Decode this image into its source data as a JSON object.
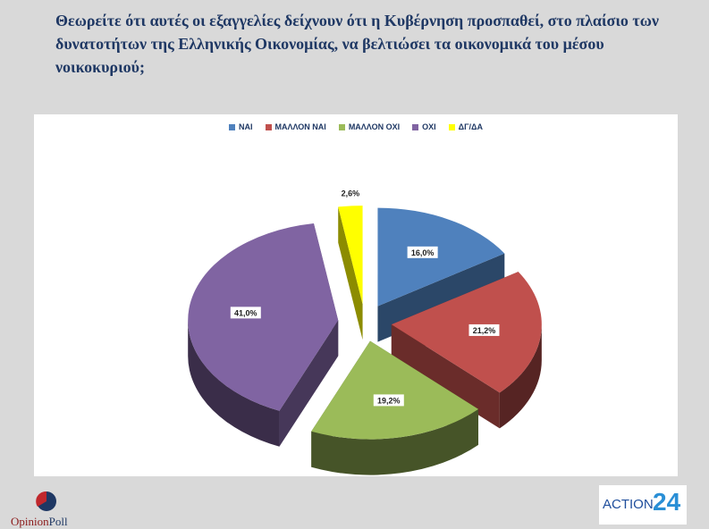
{
  "title": "Θεωρείτε ότι αυτές οι εξαγγελίες δείχνουν ότι η Κυβέρνηση προσπαθεί, στο πλαίσιο των δυνατοτήτων της Ελληνικής Οικονομίας, να βελτιώσει τα οικονομικά του μέσου νοικοκυριού;",
  "chart_data": {
    "type": "pie",
    "style": "3d-exploded",
    "legend_position": "top",
    "categories": [
      "ΝΑΙ",
      "ΜΑΛΛΟΝ ΝΑΙ",
      "ΜΑΛΛΟΝ ΟΧΙ",
      "ΟΧΙ",
      "ΔΓ/ΔΑ"
    ],
    "values": [
      16.0,
      21.2,
      19.2,
      41.0,
      2.6
    ],
    "labels": [
      "16,0%",
      "21,2%",
      "19,2%",
      "41,0%",
      "2,6%"
    ],
    "colors": [
      "#4f81bd",
      "#c0504d",
      "#9bbb59",
      "#8064a2",
      "#ffff00"
    ]
  },
  "branding": {
    "left_logo_text_1": "Opinion",
    "left_logo_text_2": "Poll",
    "right_logo_text": "ACTION",
    "right_logo_number": "24"
  }
}
